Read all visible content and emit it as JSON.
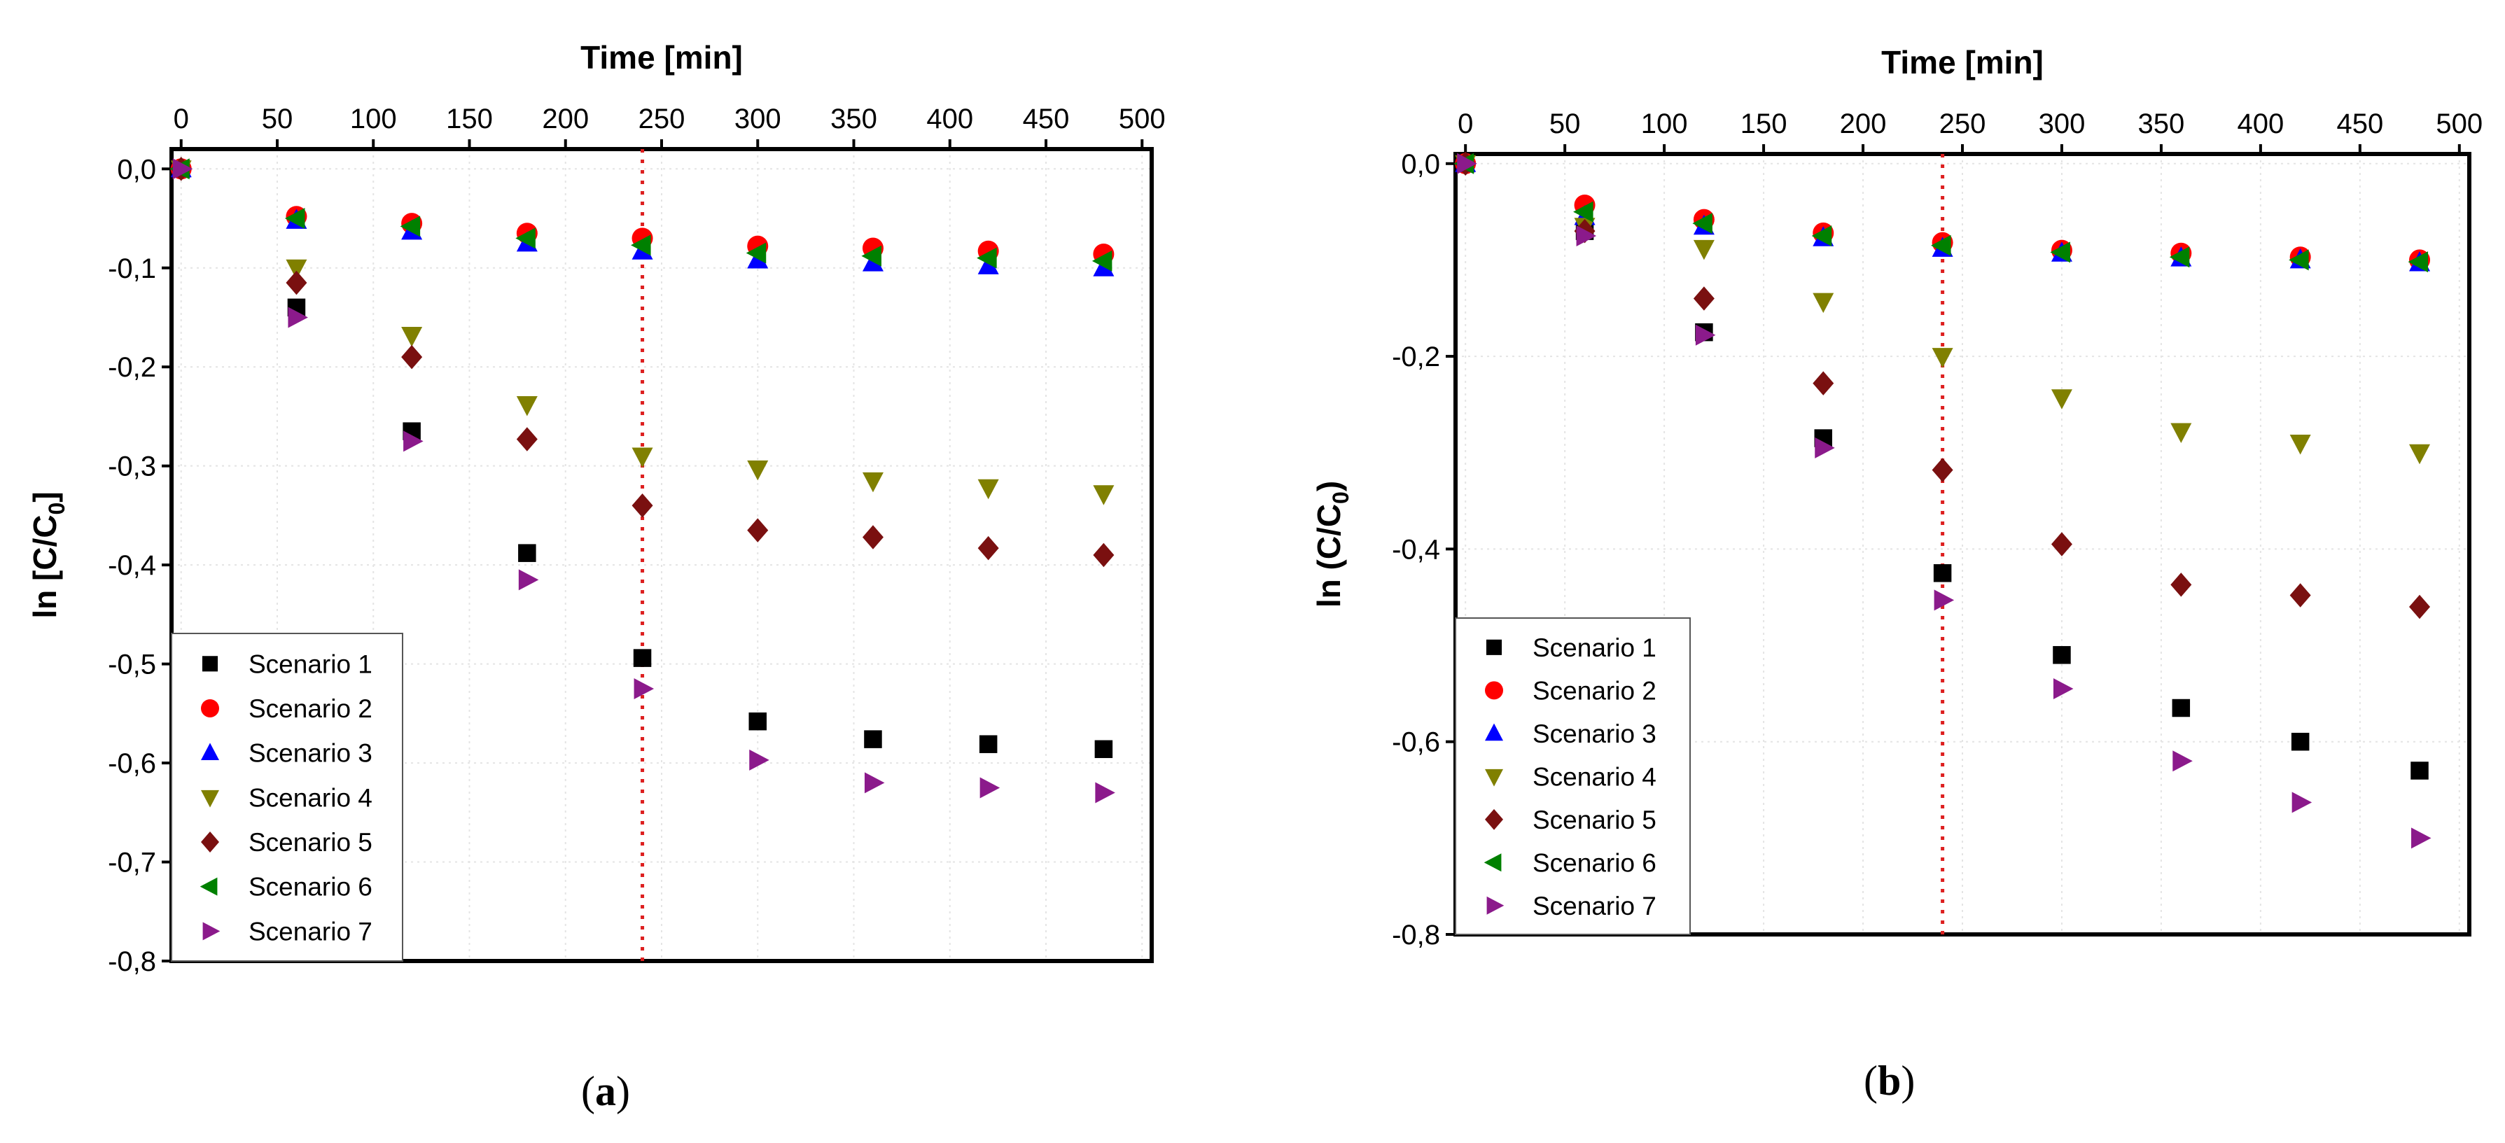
{
  "chart_data": [
    {
      "type": "scatter",
      "panel_label": "(a)",
      "panel_letter": "a",
      "xlabel": "Time [min]",
      "ylabel": "ln [C/C",
      "ylabel_sub": "0",
      "ylabel_close": "]",
      "xlim": [
        -5,
        505
      ],
      "ylim": [
        -0.8,
        0.02
      ],
      "xticks": [
        0,
        50,
        100,
        150,
        200,
        250,
        300,
        350,
        400,
        450,
        500
      ],
      "xtick_labels": [
        "0",
        "50",
        "100",
        "150",
        "200",
        "250",
        "300",
        "350",
        "400",
        "450",
        "500"
      ],
      "yticks": [
        0.0,
        -0.1,
        -0.2,
        -0.3,
        -0.4,
        -0.5,
        -0.6,
        -0.7,
        -0.8
      ],
      "ytick_labels": [
        "0,0",
        "-0,1",
        "-0,2",
        "-0,3",
        "-0,4",
        "-0,5",
        "-0,6",
        "-0,7",
        "-0,8"
      ],
      "vline_x": 240,
      "legend_position": "bottom-left",
      "x": [
        0,
        60,
        120,
        180,
        240,
        300,
        360,
        420,
        480
      ],
      "series": [
        {
          "name": "Scenario 1",
          "values": [
            0,
            -0.14,
            -0.265,
            -0.388,
            -0.494,
            -0.558,
            -0.576,
            -0.581,
            -0.586
          ]
        },
        {
          "name": "Scenario 2",
          "values": [
            0,
            -0.048,
            -0.055,
            -0.065,
            -0.07,
            -0.078,
            -0.08,
            -0.083,
            -0.086
          ]
        },
        {
          "name": "Scenario 3",
          "values": [
            0,
            -0.052,
            -0.063,
            -0.075,
            -0.083,
            -0.092,
            -0.095,
            -0.098,
            -0.1
          ]
        },
        {
          "name": "Scenario 4",
          "values": [
            0,
            -0.1,
            -0.168,
            -0.238,
            -0.29,
            -0.303,
            -0.315,
            -0.322,
            -0.328
          ]
        },
        {
          "name": "Scenario 5",
          "values": [
            0,
            -0.115,
            -0.19,
            -0.273,
            -0.34,
            -0.365,
            -0.372,
            -0.383,
            -0.39
          ]
        },
        {
          "name": "Scenario 6",
          "values": [
            0,
            -0.05,
            -0.058,
            -0.07,
            -0.077,
            -0.085,
            -0.088,
            -0.09,
            -0.093
          ]
        },
        {
          "name": "Scenario 7",
          "values": [
            0,
            -0.15,
            -0.275,
            -0.415,
            -0.525,
            -0.597,
            -0.62,
            -0.625,
            -0.63
          ]
        }
      ]
    },
    {
      "type": "scatter",
      "panel_label": "(b)",
      "panel_letter": "b",
      "xlabel": "Time [min]",
      "ylabel": "ln (C/C",
      "ylabel_sub": "0",
      "ylabel_close": ")",
      "xlim": [
        -5,
        505
      ],
      "ylim": [
        -0.8,
        0.01
      ],
      "xticks": [
        0,
        50,
        100,
        150,
        200,
        250,
        300,
        350,
        400,
        450,
        500
      ],
      "xtick_labels": [
        "0",
        "50",
        "100",
        "150",
        "200",
        "250",
        "300",
        "350",
        "400",
        "450",
        "500"
      ],
      "yticks": [
        0.0,
        -0.2,
        -0.4,
        -0.6,
        -0.8
      ],
      "ytick_labels": [
        "0,0",
        "-0,2",
        "-0,4",
        "-0,6",
        "-0,8"
      ],
      "vline_x": 240,
      "legend_position": "bottom-left",
      "x": [
        0,
        60,
        120,
        180,
        240,
        300,
        360,
        420,
        480
      ],
      "series": [
        {
          "name": "Scenario 1",
          "values": [
            0,
            -0.07,
            -0.175,
            -0.285,
            -0.425,
            -0.51,
            -0.565,
            -0.6,
            -0.63
          ]
        },
        {
          "name": "Scenario 2",
          "values": [
            0,
            -0.043,
            -0.058,
            -0.072,
            -0.082,
            -0.09,
            -0.093,
            -0.097,
            -0.1
          ]
        },
        {
          "name": "Scenario 3",
          "values": [
            0,
            -0.055,
            -0.065,
            -0.077,
            -0.088,
            -0.093,
            -0.098,
            -0.1,
            -0.103
          ]
        },
        {
          "name": "Scenario 4",
          "values": [
            0,
            -0.065,
            -0.088,
            -0.143,
            -0.2,
            -0.243,
            -0.278,
            -0.29,
            -0.3
          ]
        },
        {
          "name": "Scenario 5",
          "values": [
            0,
            -0.07,
            -0.14,
            -0.228,
            -0.318,
            -0.395,
            -0.437,
            -0.448,
            -0.46
          ]
        },
        {
          "name": "Scenario 6",
          "values": [
            0,
            -0.05,
            -0.062,
            -0.075,
            -0.085,
            -0.092,
            -0.097,
            -0.1,
            -0.102
          ]
        },
        {
          "name": "Scenario 7",
          "values": [
            0,
            -0.075,
            -0.178,
            -0.295,
            -0.453,
            -0.545,
            -0.62,
            -0.663,
            -0.7
          ]
        }
      ]
    }
  ],
  "colors": {
    "Scenario 1": "#000000",
    "Scenario 2": "#ff0000",
    "Scenario 3": "#0000ff",
    "Scenario 4": "#808000",
    "Scenario 5": "#7a1010",
    "Scenario 6": "#008000",
    "Scenario 7": "#8b1a8b",
    "vline": "#dd1f1f"
  },
  "markers": {
    "Scenario 1": "square",
    "Scenario 2": "circle",
    "Scenario 3": "triangle-up",
    "Scenario 4": "triangle-down",
    "Scenario 5": "diamond",
    "Scenario 6": "triangle-left",
    "Scenario 7": "triangle-right"
  }
}
